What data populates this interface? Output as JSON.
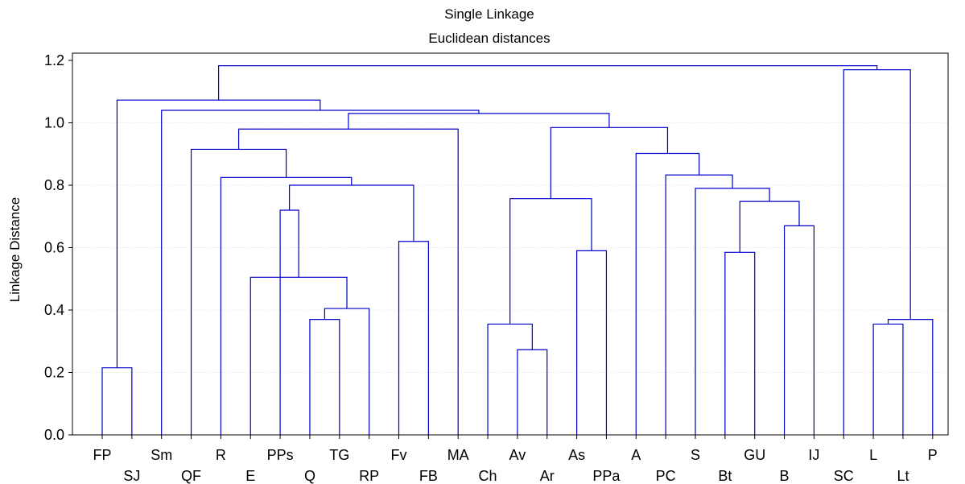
{
  "chart_data": {
    "type": "dendrogram",
    "title": "Single Linkage",
    "subtitle": "Euclidean distances",
    "ylabel": "Linkage Distance",
    "ylim": [
      0.0,
      1.2
    ],
    "y_ticks": [
      "0.0",
      "0.2",
      "0.4",
      "0.6",
      "0.8",
      "1.0",
      "1.2"
    ],
    "grid": true,
    "line_color": "#0000cc",
    "leaves": [
      "FP",
      "SJ",
      "Sm",
      "QF",
      "R",
      "E",
      "PPs",
      "Q",
      "TG",
      "RP",
      "Fv",
      "FB",
      "MA",
      "Ch",
      "Av",
      "Ar",
      "As",
      "PPa",
      "A",
      "PC",
      "S",
      "Bt",
      "GU",
      "B",
      "IJ",
      "SC",
      "L",
      "Lt",
      "P"
    ],
    "merges": [
      {
        "left": "FP",
        "right": "SJ",
        "height": 0.215
      },
      {
        "left": "Q",
        "right": "TG",
        "height": 0.37
      },
      {
        "left": "Q+TG",
        "right": "RP",
        "height": 0.405
      },
      {
        "left": "E",
        "right": "Q-RP",
        "height": 0.505
      },
      {
        "left": "PPs",
        "right": "E-RP",
        "height": 0.72
      },
      {
        "left": "Fv",
        "right": "FB",
        "height": 0.62
      },
      {
        "left": "PPs-RP",
        "right": "Fv+FB",
        "height": 0.8
      },
      {
        "left": "R",
        "right": "PPs-FB",
        "height": 0.825
      },
      {
        "left": "QF",
        "right": "R-FB",
        "height": 0.915
      },
      {
        "left": "Av",
        "right": "Ar",
        "height": 0.273
      },
      {
        "left": "Ch",
        "right": "Av+Ar",
        "height": 0.355
      },
      {
        "left": "As",
        "right": "PPa",
        "height": 0.59
      },
      {
        "left": "Ch-Ar",
        "right": "As+PPa",
        "height": 0.757
      },
      {
        "left": "Bt",
        "right": "GU",
        "height": 0.585
      },
      {
        "left": "B",
        "right": "IJ",
        "height": 0.67
      },
      {
        "left": "Bt+GU",
        "right": "B+IJ",
        "height": 0.748
      },
      {
        "left": "S",
        "right": "Bt-IJ",
        "height": 0.79
      },
      {
        "left": "PC",
        "right": "S-IJ",
        "height": 0.833
      },
      {
        "left": "A",
        "right": "PC-IJ",
        "height": 0.902
      },
      {
        "left": "Ch-PPa",
        "right": "A-IJ",
        "height": 0.985
      },
      {
        "left": "QF-FB",
        "right": "MA",
        "height": 0.98
      },
      {
        "left": "QF-MA",
        "right": "Ch-IJ",
        "height": 1.03
      },
      {
        "left": "Sm",
        "right": "QF-IJ",
        "height": 1.04
      },
      {
        "left": "FP+SJ",
        "right": "Sm-IJ",
        "height": 1.073
      },
      {
        "left": "L",
        "right": "Lt",
        "height": 0.355
      },
      {
        "left": "L+Lt",
        "right": "P",
        "height": 0.37
      },
      {
        "left": "SC",
        "right": "L-P",
        "height": 1.17
      },
      {
        "left": "FP-IJ",
        "right": "SC-P",
        "height": 1.183
      }
    ]
  }
}
